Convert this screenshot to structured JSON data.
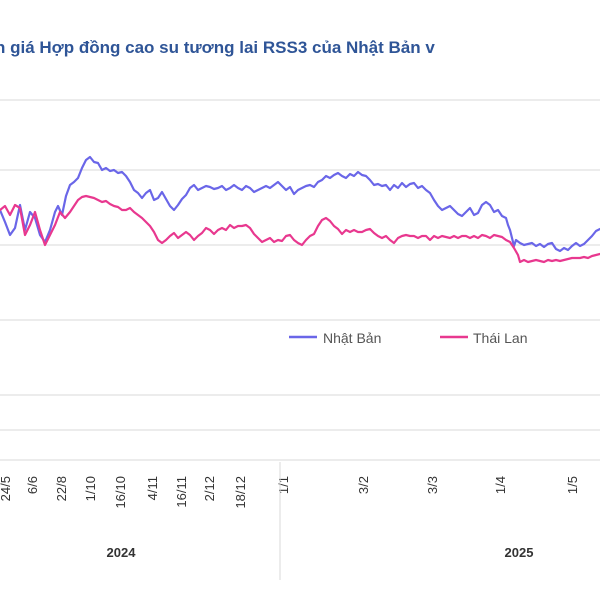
{
  "chart_data": {
    "type": "line",
    "title": "n giá Hợp đồng cao su tương lai RSS3 của Nhật Bản v",
    "colors": {
      "japan": "#6a66e8",
      "thailand": "#e8388f",
      "grid": "#d9d9d9",
      "title": "#2f5597"
    },
    "x_tick_labels": [
      "24/5",
      "6/6",
      "22/8",
      "1/10",
      "16/10",
      "4/11",
      "16/11",
      "2/12",
      "18/12",
      "1/1",
      "3/2",
      "3/3",
      "1/4",
      "1/5"
    ],
    "years": [
      "2024",
      "2025"
    ],
    "legend": {
      "placement": "inside-right",
      "entries": [
        "Nhật Bản",
        "Thái Lan"
      ]
    },
    "grid": true,
    "series": [
      {
        "name": "Nhật Bản",
        "color_key": "japan",
        "values": [
          [
            0,
            210
          ],
          [
            5,
            222
          ],
          [
            10,
            235
          ],
          [
            15,
            228
          ],
          [
            20,
            205
          ],
          [
            25,
            230
          ],
          [
            30,
            212
          ],
          [
            35,
            218
          ],
          [
            40,
            235
          ],
          [
            45,
            242
          ],
          [
            50,
            230
          ],
          [
            55,
            212
          ],
          [
            58,
            206
          ],
          [
            62,
            215
          ],
          [
            66,
            196
          ],
          [
            70,
            185
          ],
          [
            74,
            182
          ],
          [
            78,
            178
          ],
          [
            82,
            168
          ],
          [
            86,
            160
          ],
          [
            90,
            157
          ],
          [
            94,
            162
          ],
          [
            98,
            163
          ],
          [
            102,
            170
          ],
          [
            106,
            168
          ],
          [
            110,
            171
          ],
          [
            114,
            170
          ],
          [
            118,
            173
          ],
          [
            122,
            172
          ],
          [
            126,
            176
          ],
          [
            130,
            182
          ],
          [
            134,
            190
          ],
          [
            138,
            193
          ],
          [
            142,
            198
          ],
          [
            146,
            193
          ],
          [
            150,
            190
          ],
          [
            154,
            200
          ],
          [
            158,
            198
          ],
          [
            162,
            192
          ],
          [
            166,
            199
          ],
          [
            170,
            206
          ],
          [
            174,
            210
          ],
          [
            178,
            205
          ],
          [
            182,
            199
          ],
          [
            186,
            195
          ],
          [
            190,
            188
          ],
          [
            194,
            185
          ],
          [
            198,
            190
          ],
          [
            202,
            188
          ],
          [
            206,
            186
          ],
          [
            210,
            187
          ],
          [
            214,
            189
          ],
          [
            218,
            188
          ],
          [
            222,
            186
          ],
          [
            226,
            190
          ],
          [
            230,
            188
          ],
          [
            234,
            185
          ],
          [
            238,
            188
          ],
          [
            242,
            190
          ],
          [
            246,
            186
          ],
          [
            250,
            188
          ],
          [
            254,
            192
          ],
          [
            258,
            190
          ],
          [
            262,
            188
          ],
          [
            266,
            186
          ],
          [
            270,
            188
          ],
          [
            274,
            185
          ],
          [
            278,
            182
          ],
          [
            282,
            186
          ],
          [
            286,
            190
          ],
          [
            290,
            187
          ],
          [
            294,
            194
          ],
          [
            298,
            190
          ],
          [
            302,
            188
          ],
          [
            306,
            186
          ],
          [
            310,
            185
          ],
          [
            314,
            187
          ],
          [
            318,
            182
          ],
          [
            322,
            180
          ],
          [
            326,
            176
          ],
          [
            330,
            178
          ],
          [
            334,
            175
          ],
          [
            338,
            173
          ],
          [
            342,
            176
          ],
          [
            346,
            178
          ],
          [
            350,
            174
          ],
          [
            354,
            176
          ],
          [
            358,
            172
          ],
          [
            362,
            175
          ],
          [
            366,
            176
          ],
          [
            370,
            180
          ],
          [
            374,
            185
          ],
          [
            378,
            184
          ],
          [
            382,
            186
          ],
          [
            386,
            185
          ],
          [
            390,
            190
          ],
          [
            394,
            185
          ],
          [
            398,
            188
          ],
          [
            402,
            183
          ],
          [
            406,
            187
          ],
          [
            410,
            184
          ],
          [
            414,
            183
          ],
          [
            418,
            188
          ],
          [
            422,
            186
          ],
          [
            426,
            190
          ],
          [
            430,
            193
          ],
          [
            434,
            200
          ],
          [
            438,
            206
          ],
          [
            442,
            210
          ],
          [
            446,
            208
          ],
          [
            450,
            206
          ],
          [
            454,
            210
          ],
          [
            458,
            214
          ],
          [
            462,
            216
          ],
          [
            466,
            212
          ],
          [
            470,
            208
          ],
          [
            474,
            215
          ],
          [
            478,
            213
          ],
          [
            482,
            205
          ],
          [
            486,
            202
          ],
          [
            490,
            205
          ],
          [
            494,
            212
          ],
          [
            498,
            210
          ],
          [
            502,
            216
          ],
          [
            506,
            218
          ],
          [
            508,
            225
          ],
          [
            510,
            230
          ],
          [
            512,
            238
          ],
          [
            514,
            246
          ],
          [
            516,
            240
          ],
          [
            520,
            243
          ],
          [
            524,
            245
          ],
          [
            528,
            244
          ],
          [
            532,
            243
          ],
          [
            536,
            246
          ],
          [
            540,
            244
          ],
          [
            544,
            247
          ],
          [
            548,
            244
          ],
          [
            552,
            243
          ],
          [
            556,
            249
          ],
          [
            560,
            251
          ],
          [
            564,
            248
          ],
          [
            568,
            250
          ],
          [
            572,
            246
          ],
          [
            576,
            243
          ],
          [
            580,
            246
          ],
          [
            584,
            244
          ],
          [
            588,
            240
          ],
          [
            592,
            236
          ],
          [
            596,
            231
          ],
          [
            600,
            229
          ]
        ]
      },
      {
        "name": "Thái Lan",
        "color_key": "thailand",
        "values": [
          [
            0,
            210
          ],
          [
            5,
            206
          ],
          [
            10,
            215
          ],
          [
            15,
            205
          ],
          [
            20,
            208
          ],
          [
            25,
            235
          ],
          [
            30,
            225
          ],
          [
            35,
            212
          ],
          [
            40,
            230
          ],
          [
            45,
            245
          ],
          [
            50,
            235
          ],
          [
            55,
            225
          ],
          [
            60,
            212
          ],
          [
            65,
            218
          ],
          [
            70,
            212
          ],
          [
            74,
            206
          ],
          [
            78,
            200
          ],
          [
            82,
            197
          ],
          [
            86,
            196
          ],
          [
            90,
            197
          ],
          [
            94,
            198
          ],
          [
            98,
            200
          ],
          [
            102,
            202
          ],
          [
            106,
            201
          ],
          [
            110,
            204
          ],
          [
            114,
            206
          ],
          [
            118,
            207
          ],
          [
            122,
            210
          ],
          [
            126,
            210
          ],
          [
            130,
            208
          ],
          [
            134,
            212
          ],
          [
            138,
            215
          ],
          [
            142,
            218
          ],
          [
            146,
            222
          ],
          [
            150,
            226
          ],
          [
            154,
            232
          ],
          [
            158,
            240
          ],
          [
            162,
            243
          ],
          [
            166,
            240
          ],
          [
            170,
            236
          ],
          [
            174,
            233
          ],
          [
            178,
            238
          ],
          [
            182,
            235
          ],
          [
            186,
            232
          ],
          [
            190,
            235
          ],
          [
            194,
            240
          ],
          [
            198,
            236
          ],
          [
            202,
            233
          ],
          [
            206,
            228
          ],
          [
            210,
            230
          ],
          [
            214,
            234
          ],
          [
            218,
            230
          ],
          [
            222,
            228
          ],
          [
            226,
            230
          ],
          [
            230,
            225
          ],
          [
            234,
            228
          ],
          [
            238,
            226
          ],
          [
            242,
            226
          ],
          [
            246,
            225
          ],
          [
            250,
            228
          ],
          [
            254,
            234
          ],
          [
            258,
            238
          ],
          [
            262,
            242
          ],
          [
            266,
            240
          ],
          [
            270,
            238
          ],
          [
            274,
            242
          ],
          [
            278,
            240
          ],
          [
            282,
            241
          ],
          [
            286,
            236
          ],
          [
            290,
            235
          ],
          [
            294,
            240
          ],
          [
            298,
            243
          ],
          [
            302,
            245
          ],
          [
            306,
            240
          ],
          [
            310,
            236
          ],
          [
            314,
            234
          ],
          [
            318,
            226
          ],
          [
            322,
            220
          ],
          [
            326,
            218
          ],
          [
            330,
            221
          ],
          [
            334,
            226
          ],
          [
            338,
            229
          ],
          [
            342,
            234
          ],
          [
            346,
            230
          ],
          [
            350,
            232
          ],
          [
            354,
            230
          ],
          [
            358,
            232
          ],
          [
            362,
            232
          ],
          [
            366,
            230
          ],
          [
            370,
            229
          ],
          [
            374,
            233
          ],
          [
            378,
            236
          ],
          [
            382,
            238
          ],
          [
            386,
            236
          ],
          [
            390,
            240
          ],
          [
            394,
            243
          ],
          [
            398,
            238
          ],
          [
            402,
            236
          ],
          [
            406,
            235
          ],
          [
            410,
            236
          ],
          [
            414,
            236
          ],
          [
            418,
            238
          ],
          [
            422,
            236
          ],
          [
            426,
            236
          ],
          [
            430,
            240
          ],
          [
            434,
            236
          ],
          [
            438,
            238
          ],
          [
            442,
            236
          ],
          [
            446,
            237
          ],
          [
            450,
            238
          ],
          [
            454,
            236
          ],
          [
            458,
            238
          ],
          [
            462,
            236
          ],
          [
            466,
            236
          ],
          [
            470,
            238
          ],
          [
            474,
            236
          ],
          [
            478,
            238
          ],
          [
            482,
            235
          ],
          [
            486,
            236
          ],
          [
            490,
            238
          ],
          [
            494,
            235
          ],
          [
            498,
            236
          ],
          [
            502,
            237
          ],
          [
            506,
            240
          ],
          [
            510,
            242
          ],
          [
            514,
            248
          ],
          [
            518,
            255
          ],
          [
            520,
            262
          ],
          [
            524,
            260
          ],
          [
            528,
            262
          ],
          [
            532,
            261
          ],
          [
            536,
            260
          ],
          [
            540,
            261
          ],
          [
            544,
            262
          ],
          [
            548,
            260
          ],
          [
            552,
            261
          ],
          [
            556,
            260
          ],
          [
            560,
            261
          ],
          [
            564,
            260
          ],
          [
            568,
            259
          ],
          [
            572,
            258
          ],
          [
            576,
            258
          ],
          [
            580,
            258
          ],
          [
            584,
            257
          ],
          [
            588,
            258
          ],
          [
            592,
            256
          ],
          [
            596,
            255
          ],
          [
            600,
            254
          ]
        ]
      }
    ]
  }
}
